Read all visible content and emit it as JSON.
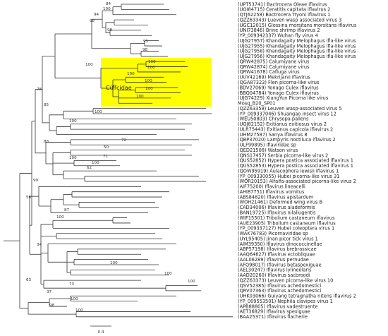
{
  "tree": {
    "clade_label": "Culicidae",
    "scale_label": 0.4,
    "leaves": [
      {
        "label": "(UPT53741) Bactrocera Oleae iflavirus"
      },
      {
        "label": "(UOI84715) Ceratitis capitata iflavirus 2"
      },
      {
        "label": "(QTJ62258) Bactrocera Tryoni iflavirus 1"
      },
      {
        "label": "(QZZ63343) Lueven wasp associated virus 3"
      },
      {
        "label": "(UGC12015) Glossina morsitans morsitans iflavirus"
      },
      {
        "label": "(UNI73846) Brine shrimp iflavirus 2"
      },
      {
        "label": "(YP_009342337) Wuhan fly virus 4"
      },
      {
        "label": "(UJG27957) Khandagaity Melophagus ifla-like virus"
      },
      {
        "label": "(UJG27955) Khandagaity Melophagus ifla-like virus"
      },
      {
        "label": "(UJG27958) Khandagaity Melophagus ifla-like virus"
      },
      {
        "label": "(UJG27956) Khandagaity Melophagus ifla-like virus"
      },
      {
        "label": "(QRW42875) Calumiyane virus"
      },
      {
        "label": "(QRW42874) Calumiyane virus"
      },
      {
        "label": "(QRW41678) Cafluga virus"
      },
      {
        "label": "(UUV42169) Mekrijarvi iflavirus"
      },
      {
        "label": "(QGA87323) Flen picorna-like virus"
      },
      {
        "label": "(BDV27069) Yonago Culex iflavirus"
      },
      {
        "label": "(BBQ04784) Yonago Culex iflavirus"
      },
      {
        "label": "(UJG74229) XiangYun Picorna like virus"
      },
      {
        "label": "Mosq_B20_SP01",
        "color": "#ff0000"
      },
      {
        "label": "(QZZ63358) Leuven wasp-associated virus 5"
      },
      {
        "label": "(YP_009337046) Shuangao insect virus 12"
      },
      {
        "label": "(WEU50803) Chrysopa pallens"
      },
      {
        "label": "(UQJ82152) Exitianus exitiosus virus 2"
      },
      {
        "label": "(ULR75443) Exitianus capicola iflavirus 2"
      },
      {
        "label": "(UHM27587) Sanya iflavirus 8"
      },
      {
        "label": "(QBP37020) Lampyris noctiluca iflavirus 2"
      },
      {
        "label": "(ULF99895) Iflaviridae sp"
      },
      {
        "label": "(QED21508) Watson virus"
      },
      {
        "label": "(QNS17457) Serbia picorna-like virus 2"
      },
      {
        "label": "(QUS52852) Hypera postica associated iflavirus 1"
      },
      {
        "label": "(QUS52853) Hypera postica associated iflavirus 1"
      },
      {
        "label": "(QOW95919) Aulacophora lewisii iflavirus 1"
      },
      {
        "label": "(YP_009330055) Hubei picorna-like virus 31"
      },
      {
        "label": "(WOR20153) Alfalfa-associated picorna-like virus 2"
      },
      {
        "label": "(AIF75200) Iflavirus lineacelli"
      },
      {
        "label": "(AHI87751) Iflavirus vomitus"
      },
      {
        "label": "(ABS84820) Iflavirus apistardum"
      },
      {
        "label": "(WOH21461) Deformed wing virus B"
      },
      {
        "label": "(CAD34006) Iflavirus aladeformis"
      },
      {
        "label": "(BAN19725) Iflavirus nilaliugentis"
      },
      {
        "label": "(WIF15501) Tribolium castaneum iflavirus"
      },
      {
        "label": "(AUE23905) Tribolium castaneum iflavirus"
      },
      {
        "label": "(YP_009337127) Hubei coleoptera virus 1"
      },
      {
        "label": "(WAK76783) Picornaviridae sp"
      },
      {
        "label": "(UYL95405) Jinan picor tick virus 1"
      },
      {
        "label": "(AIM39350) Iflavirus dinococcinellae"
      },
      {
        "label": "(ABP57198) Iflavirus brebrassicae"
      },
      {
        "label": "(AAQ64627) Iflavirus ectobliquae"
      },
      {
        "label": "(AAL06289) Iflavirus pernudae"
      },
      {
        "label": "(AFQ98017) Iflavirus betaspexiguae"
      },
      {
        "label": "(AEL30247) Iflavirus lylineolaris"
      },
      {
        "label": "(AAD20260) Iflavirus sacbroodi"
      },
      {
        "label": "(QZZ63373) Leuven picorna-like virus 10"
      },
      {
        "label": "(QSV52385) Iflavirus achedomestici"
      },
      {
        "label": "(QRV07363) Iflavirus achedomestici"
      },
      {
        "label": "(UHK03066) Guiyang tetragnatha nitens iflavirus 2"
      },
      {
        "label": "(YP_009553501) Nephila clavipes virus 1"
      },
      {
        "label": "(APB88805) Iflavirus vadestruente"
      },
      {
        "label": "(AET36829) Iflavirus spexiguae"
      },
      {
        "label": "(BAA25371) Iflavirus flacherie"
      }
    ],
    "supports": [
      84,
      100,
      94,
      98,
      98,
      95,
      98,
      100,
      100,
      100,
      100,
      100,
      97,
      100,
      100,
      78,
      85,
      100,
      100,
      88,
      72,
      50,
      71,
      100,
      62,
      100,
      99,
      56,
      87,
      100,
      100,
      34,
      100,
      73,
      37,
      63,
      100,
      100,
      98,
      100
    ]
  }
}
